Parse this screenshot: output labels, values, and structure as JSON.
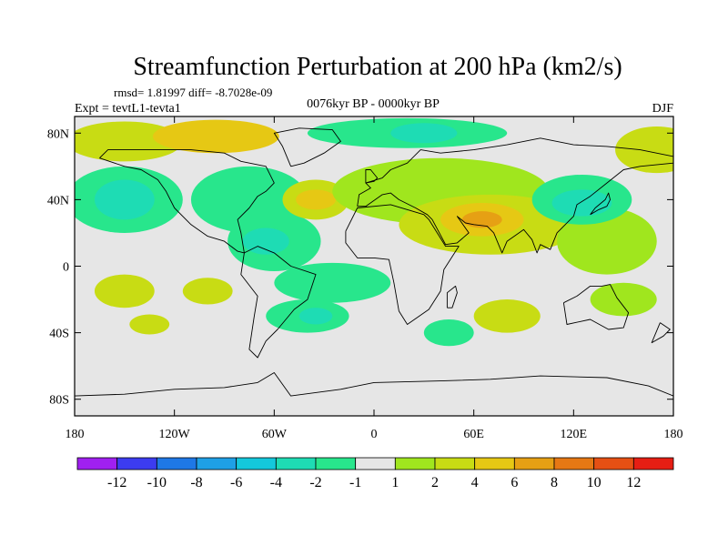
{
  "chart_data": {
    "type": "heatmap",
    "title": "Streamfunction Perturbation at 200 hPa (km2/s)",
    "stats_line": "rmsd= 1.81997 diff= -8.7028e-09",
    "experiment": "Expt = tevtL1-tevta1",
    "period": "0076kyr BP - 0000kyr BP",
    "season": "DJF",
    "xlim": [
      -180,
      180
    ],
    "ylim": [
      -90,
      90
    ],
    "x_ticks": [
      {
        "value": -180,
        "label": "180"
      },
      {
        "value": -120,
        "label": "120W"
      },
      {
        "value": -60,
        "label": "60W"
      },
      {
        "value": 0,
        "label": "0"
      },
      {
        "value": 60,
        "label": "60E"
      },
      {
        "value": 120,
        "label": "120E"
      },
      {
        "value": 180,
        "label": "180"
      }
    ],
    "y_ticks": [
      {
        "value": 80,
        "label": "80N"
      },
      {
        "value": 40,
        "label": "40N"
      },
      {
        "value": 0,
        "label": "0"
      },
      {
        "value": -40,
        "label": "40S"
      },
      {
        "value": -80,
        "label": "80S"
      }
    ],
    "colorbar": {
      "colors": [
        "#a020f0",
        "#3c3cf0",
        "#1e78e6",
        "#1ea0e6",
        "#14c8dc",
        "#1edcb4",
        "#28e68c",
        "#e6e6e6",
        "#a0e61e",
        "#c8dc14",
        "#e6c814",
        "#e6a014",
        "#e67814",
        "#e65014",
        "#e61e14"
      ],
      "labels": [
        "-12",
        "-10",
        "-8",
        "-6",
        "-4",
        "-2",
        "-1",
        "1",
        "2",
        "4",
        "6",
        "8",
        "10",
        "12"
      ]
    },
    "anomalies": [
      {
        "name": "arctic-atlantic-positive",
        "lon": -150,
        "lat": 75,
        "rx": 35,
        "ry": 12,
        "level": 2
      },
      {
        "name": "greenland-positive",
        "lon": -95,
        "lat": 78,
        "rx": 38,
        "ry": 10,
        "level": 4
      },
      {
        "name": "east-pacific-positive",
        "lon": 170,
        "lat": 70,
        "rx": 25,
        "ry": 14,
        "level": 2
      },
      {
        "name": "arctic-north-negative",
        "lon": 20,
        "lat": 80,
        "rx": 60,
        "ry": 9,
        "level": -1
      },
      {
        "name": "arctic-core-negative",
        "lon": 30,
        "lat": 80,
        "rx": 20,
        "ry": 6,
        "level": -2
      },
      {
        "name": "northeast-pacific-negative",
        "lon": -150,
        "lat": 40,
        "rx": 35,
        "ry": 20,
        "level": -1
      },
      {
        "name": "northeast-pacific-core",
        "lon": -150,
        "lat": 40,
        "rx": 18,
        "ry": 12,
        "level": -2
      },
      {
        "name": "north-america-negative",
        "lon": -75,
        "lat": 40,
        "rx": 35,
        "ry": 20,
        "level": -1
      },
      {
        "name": "central-america-negative",
        "lon": -60,
        "lat": 15,
        "rx": 28,
        "ry": 18,
        "level": -1
      },
      {
        "name": "caribbean-core-negative",
        "lon": -65,
        "lat": 15,
        "rx": 14,
        "ry": 8,
        "level": -2
      },
      {
        "name": "mid-atlantic-positive",
        "lon": -35,
        "lat": 40,
        "rx": 20,
        "ry": 12,
        "level": 2
      },
      {
        "name": "mid-atlantic-core",
        "lon": -35,
        "lat": 40,
        "rx": 12,
        "ry": 6,
        "level": 4
      },
      {
        "name": "eurasia-positive",
        "lon": 40,
        "lat": 45,
        "rx": 65,
        "ry": 20,
        "level": 1
      },
      {
        "name": "asia-positive",
        "lon": 70,
        "lat": 25,
        "rx": 55,
        "ry": 18,
        "level": 2
      },
      {
        "name": "india-core-positive",
        "lon": 65,
        "lat": 28,
        "rx": 25,
        "ry": 10,
        "level": 4
      },
      {
        "name": "india-peak-positive",
        "lon": 65,
        "lat": 28,
        "rx": 12,
        "ry": 5,
        "level": 6
      },
      {
        "name": "west-pacific-positive",
        "lon": 140,
        "lat": 15,
        "rx": 30,
        "ry": 20,
        "level": 1
      },
      {
        "name": "east-asia-negative",
        "lon": 125,
        "lat": 40,
        "rx": 30,
        "ry": 15,
        "level": -1
      },
      {
        "name": "east-asia-core",
        "lon": 125,
        "lat": 38,
        "rx": 18,
        "ry": 8,
        "level": -2
      },
      {
        "name": "equatorial-atlantic-negative",
        "lon": -25,
        "lat": -10,
        "rx": 35,
        "ry": 12,
        "level": -1
      },
      {
        "name": "south-atlantic-negative",
        "lon": -40,
        "lat": -30,
        "rx": 25,
        "ry": 10,
        "level": -1
      },
      {
        "name": "south-atlantic-core",
        "lon": -35,
        "lat": -30,
        "rx": 10,
        "ry": 5,
        "level": -2
      },
      {
        "name": "south-pacific-positive",
        "lon": -150,
        "lat": -15,
        "rx": 18,
        "ry": 10,
        "level": 2
      },
      {
        "name": "south-pacific-east-positive",
        "lon": -100,
        "lat": -15,
        "rx": 15,
        "ry": 8,
        "level": 2
      },
      {
        "name": "south-pacific-south-positive",
        "lon": -135,
        "lat": -35,
        "rx": 12,
        "ry": 6,
        "level": 2
      },
      {
        "name": "south-africa-negative",
        "lon": 45,
        "lat": -40,
        "rx": 15,
        "ry": 8,
        "level": -1
      },
      {
        "name": "south-indian-positive",
        "lon": 80,
        "lat": -30,
        "rx": 20,
        "ry": 10,
        "level": 2
      },
      {
        "name": "australia-positive",
        "lon": 150,
        "lat": -20,
        "rx": 20,
        "ry": 10,
        "level": 1
      }
    ],
    "coastlines": [
      {
        "name": "north-america",
        "points": [
          [
            -165,
            65
          ],
          [
            -150,
            60
          ],
          [
            -140,
            58
          ],
          [
            -130,
            52
          ],
          [
            -125,
            45
          ],
          [
            -120,
            35
          ],
          [
            -110,
            25
          ],
          [
            -100,
            18
          ],
          [
            -90,
            15
          ],
          [
            -82,
            9
          ],
          [
            -78,
            8
          ],
          [
            -80,
            20
          ],
          [
            -82,
            28
          ],
          [
            -75,
            35
          ],
          [
            -70,
            42
          ],
          [
            -65,
            45
          ],
          [
            -60,
            50
          ],
          [
            -65,
            60
          ],
          [
            -80,
            63
          ],
          [
            -90,
            68
          ],
          [
            -110,
            70
          ],
          [
            -130,
            70
          ],
          [
            -145,
            70
          ],
          [
            -160,
            70
          ],
          [
            -165,
            65
          ]
        ]
      },
      {
        "name": "south-america",
        "points": [
          [
            -78,
            8
          ],
          [
            -70,
            12
          ],
          [
            -60,
            8
          ],
          [
            -50,
            0
          ],
          [
            -35,
            -5
          ],
          [
            -40,
            -20
          ],
          [
            -48,
            -26
          ],
          [
            -58,
            -38
          ],
          [
            -65,
            -45
          ],
          [
            -70,
            -55
          ],
          [
            -75,
            -50
          ],
          [
            -72,
            -30
          ],
          [
            -70,
            -18
          ],
          [
            -80,
            -5
          ],
          [
            -78,
            8
          ]
        ]
      },
      {
        "name": "greenland",
        "points": [
          [
            -50,
            60
          ],
          [
            -42,
            62
          ],
          [
            -30,
            68
          ],
          [
            -20,
            75
          ],
          [
            -25,
            82
          ],
          [
            -45,
            83
          ],
          [
            -60,
            80
          ],
          [
            -55,
            72
          ],
          [
            -50,
            60
          ]
        ]
      },
      {
        "name": "europe-asia",
        "points": [
          [
            -10,
            36
          ],
          [
            -9,
            43
          ],
          [
            -2,
            47
          ],
          [
            -5,
            50
          ],
          [
            5,
            53
          ],
          [
            10,
            58
          ],
          [
            20,
            62
          ],
          [
            28,
            70
          ],
          [
            40,
            68
          ],
          [
            60,
            70
          ],
          [
            80,
            73
          ],
          [
            100,
            77
          ],
          [
            120,
            73
          ],
          [
            140,
            72
          ],
          [
            160,
            70
          ],
          [
            180,
            66
          ],
          [
            180,
            62
          ],
          [
            160,
            60
          ],
          [
            150,
            58
          ],
          [
            140,
            50
          ],
          [
            130,
            42
          ],
          [
            122,
            37
          ],
          [
            120,
            30
          ],
          [
            110,
            20
          ],
          [
            106,
            10
          ],
          [
            100,
            13
          ],
          [
            98,
            8
          ],
          [
            95,
            16
          ],
          [
            90,
            22
          ],
          [
            80,
            15
          ],
          [
            77,
            8
          ],
          [
            72,
            20
          ],
          [
            68,
            24
          ],
          [
            60,
            25
          ],
          [
            55,
            26
          ],
          [
            50,
            30
          ],
          [
            57,
            20
          ],
          [
            50,
            14
          ],
          [
            43,
            13
          ],
          [
            35,
            28
          ],
          [
            32,
            31
          ],
          [
            25,
            35
          ],
          [
            15,
            40
          ],
          [
            10,
            44
          ],
          [
            5,
            43
          ],
          [
            -5,
            36
          ],
          [
            -10,
            36
          ]
        ]
      },
      {
        "name": "africa",
        "points": [
          [
            -17,
            21
          ],
          [
            -10,
            35
          ],
          [
            10,
            37
          ],
          [
            30,
            31
          ],
          [
            33,
            28
          ],
          [
            43,
            12
          ],
          [
            51,
            12
          ],
          [
            42,
            -2
          ],
          [
            40,
            -15
          ],
          [
            33,
            -26
          ],
          [
            20,
            -35
          ],
          [
            15,
            -27
          ],
          [
            12,
            -10
          ],
          [
            9,
            4
          ],
          [
            0,
            5
          ],
          [
            -10,
            5
          ],
          [
            -17,
            14
          ],
          [
            -17,
            21
          ]
        ]
      },
      {
        "name": "australia",
        "points": [
          [
            114,
            -22
          ],
          [
            122,
            -18
          ],
          [
            130,
            -12
          ],
          [
            137,
            -12
          ],
          [
            142,
            -11
          ],
          [
            146,
            -19
          ],
          [
            153,
            -28
          ],
          [
            150,
            -37
          ],
          [
            141,
            -38
          ],
          [
            130,
            -32
          ],
          [
            116,
            -35
          ],
          [
            114,
            -22
          ]
        ]
      },
      {
        "name": "antarctica",
        "points": [
          [
            -180,
            -78
          ],
          [
            -150,
            -77
          ],
          [
            -120,
            -74
          ],
          [
            -90,
            -73
          ],
          [
            -70,
            -70
          ],
          [
            -60,
            -64
          ],
          [
            -50,
            -78
          ],
          [
            -20,
            -74
          ],
          [
            0,
            -70
          ],
          [
            40,
            -69
          ],
          [
            70,
            -68
          ],
          [
            100,
            -66
          ],
          [
            140,
            -67
          ],
          [
            165,
            -72
          ],
          [
            180,
            -78
          ]
        ]
      },
      {
        "name": "british-isles",
        "points": [
          [
            -5,
            50
          ],
          [
            0,
            51
          ],
          [
            2,
            53
          ],
          [
            -2,
            58
          ],
          [
            -5,
            58
          ],
          [
            -5,
            50
          ]
        ]
      },
      {
        "name": "japan",
        "points": [
          [
            130,
            31
          ],
          [
            135,
            34
          ],
          [
            140,
            36
          ],
          [
            142,
            40
          ],
          [
            141,
            44
          ],
          [
            139,
            40
          ],
          [
            133,
            35
          ],
          [
            130,
            31
          ]
        ]
      },
      {
        "name": "madagascar",
        "points": [
          [
            44,
            -25
          ],
          [
            47,
            -25
          ],
          [
            50,
            -16
          ],
          [
            49,
            -12
          ],
          [
            44,
            -16
          ],
          [
            44,
            -25
          ]
        ]
      },
      {
        "name": "new-zealand",
        "points": [
          [
            172,
            -34
          ],
          [
            178,
            -38
          ],
          [
            174,
            -42
          ],
          [
            167,
            -46
          ],
          [
            172,
            -34
          ]
        ]
      }
    ]
  }
}
